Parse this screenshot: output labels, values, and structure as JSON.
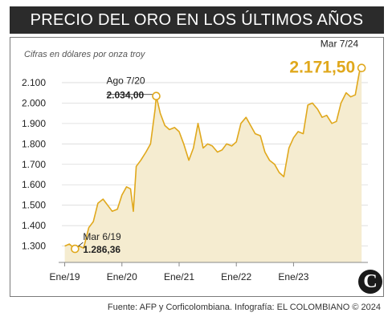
{
  "title": "PRECIO DEL ORO EN LOS ÚLTIMOS AÑOS",
  "subtitle": "Cifras en dólares por onza troy",
  "source": "Fuente: AFP y Corficolombiana. Infografía: EL COLOMBIANO © 2024",
  "logo_text": "C",
  "colors": {
    "line": "#e0a81c",
    "area": "#f5ecd0",
    "title_bg": "#2b2b2b",
    "highlight": "#e0a81c"
  },
  "chart_data": {
    "type": "area",
    "title": "PRECIO DEL ORO EN LOS ÚLTIMOS AÑOS",
    "ylabel": "Cifras en dólares por onza troy",
    "ylim": [
      1220,
      2190
    ],
    "xlim": [
      2018.95,
      2024.3
    ],
    "yticks": [
      1300,
      1400,
      1500,
      1600,
      1700,
      1800,
      1900,
      2000,
      2100
    ],
    "ytick_labels": [
      "1.300",
      "1.400",
      "1.500",
      "1.600",
      "1.700",
      "1.800",
      "1.900",
      "2.000",
      "2.100"
    ],
    "xticks": [
      2019,
      2020,
      2021,
      2022,
      2023
    ],
    "xtick_labels": [
      "Ene/19",
      "Ene/20",
      "Ene/21",
      "Ene/22",
      "Ene/23"
    ],
    "grid": "horizontal",
    "series": [
      {
        "x": [
          2019.0,
          2019.08,
          2019.18,
          2019.25,
          2019.33,
          2019.42,
          2019.5,
          2019.58,
          2019.67,
          2019.75,
          2019.83,
          2019.92,
          2020.0,
          2020.08,
          2020.15,
          2020.2,
          2020.25,
          2020.33,
          2020.42,
          2020.5,
          2020.58,
          2020.6,
          2020.67,
          2020.75,
          2020.83,
          2020.92,
          2021.0,
          2021.08,
          2021.17,
          2021.25,
          2021.33,
          2021.42,
          2021.5,
          2021.58,
          2021.67,
          2021.75,
          2021.83,
          2021.92,
          2022.0,
          2022.08,
          2022.17,
          2022.25,
          2022.33,
          2022.42,
          2022.5,
          2022.58,
          2022.67,
          2022.75,
          2022.83,
          2022.92,
          2023.0,
          2023.08,
          2023.17,
          2023.25,
          2023.33,
          2023.42,
          2023.5,
          2023.58,
          2023.67,
          2023.75,
          2023.83,
          2023.92,
          2024.0,
          2024.08,
          2024.15,
          2024.19
        ],
        "values": [
          1300,
          1310,
          1286.36,
          1300,
          1290,
          1390,
          1420,
          1510,
          1530,
          1500,
          1470,
          1480,
          1550,
          1590,
          1580,
          1470,
          1690,
          1720,
          1760,
          1800,
          1970,
          2034.0,
          1950,
          1890,
          1870,
          1880,
          1860,
          1800,
          1720,
          1780,
          1900,
          1780,
          1800,
          1790,
          1760,
          1770,
          1800,
          1790,
          1810,
          1900,
          1930,
          1890,
          1850,
          1840,
          1760,
          1720,
          1700,
          1660,
          1640,
          1780,
          1830,
          1860,
          1850,
          1990,
          2000,
          1970,
          1930,
          1940,
          1900,
          1910,
          2000,
          2050,
          2030,
          2040,
          2150,
          2171.5
        ]
      }
    ],
    "annotations": [
      {
        "date": "Mar 6/19",
        "value": "1.286,36",
        "x": 2019.18,
        "y": 1286.36
      },
      {
        "date": "Ago 7/20",
        "value": "2.034,00",
        "x": 2020.6,
        "y": 2034.0
      },
      {
        "date": "Mar 7/24",
        "value": "2.171,50",
        "x": 2024.19,
        "y": 2171.5
      }
    ]
  }
}
